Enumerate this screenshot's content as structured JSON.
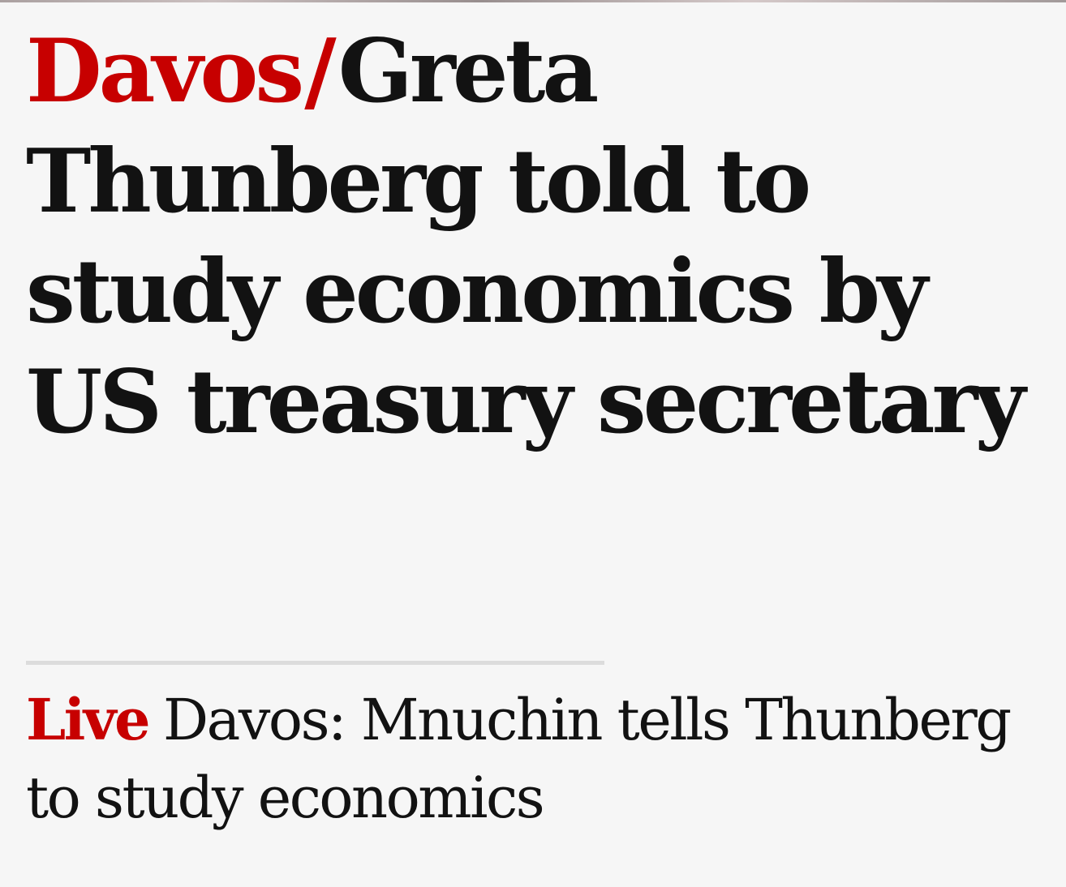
{
  "headline": {
    "kicker": "Davos",
    "separator": "/",
    "text": "Greta Thunberg told to study economics by US treasury secretary"
  },
  "sublink": {
    "badge": "Live",
    "text": "Davos: Mnuchin tells Thunberg to study economics"
  },
  "colors": {
    "accent": "#c70000",
    "text": "#121212",
    "background": "#f6f6f6",
    "divider": "#dcdcdc"
  }
}
